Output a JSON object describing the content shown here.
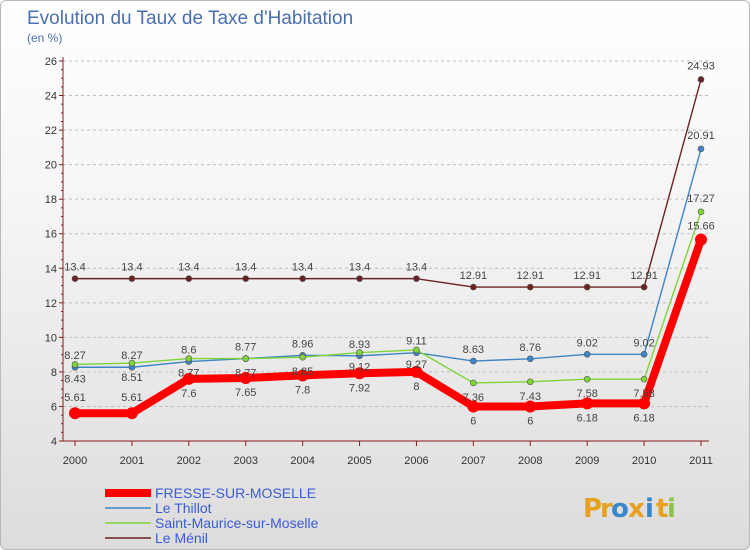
{
  "chart_data": {
    "type": "line",
    "title": "Evolution du Taux de Taxe d'Habitation",
    "subtitle": "(en %)",
    "xlabel": "",
    "ylabel": "",
    "categories": [
      "2000",
      "2001",
      "2002",
      "2003",
      "2004",
      "2005",
      "2006",
      "2007",
      "2008",
      "2009",
      "2010",
      "2011"
    ],
    "ylim": [
      4,
      26
    ],
    "yticks": [
      4,
      6,
      8,
      10,
      12,
      14,
      16,
      18,
      20,
      22,
      24,
      26
    ],
    "grid": "horizontal-dashed",
    "legend_position": "bottom-left",
    "series": [
      {
        "name": "Le Ménil",
        "color": "#6b2222",
        "values": [
          13.4,
          13.4,
          13.4,
          13.4,
          13.4,
          13.4,
          13.4,
          12.91,
          12.91,
          12.91,
          12.91,
          24.93
        ],
        "labels": [
          "13.4",
          "13.4",
          "13.4",
          "13.4",
          "13.4",
          "13.4",
          "13.4",
          "12.91",
          "12.91",
          "12.91",
          "12.91",
          "24.93"
        ]
      },
      {
        "name": "Le Thillot",
        "color": "#3d85c6",
        "values": [
          8.27,
          8.27,
          8.6,
          8.77,
          8.96,
          8.93,
          9.11,
          8.63,
          8.76,
          9.02,
          9.02,
          20.91
        ],
        "labels": [
          "8.27",
          "8.27",
          "8.6",
          "8.77",
          "8.96",
          "8.93",
          "9.11",
          "8.63",
          "8.76",
          "9.02",
          "9.02",
          "20.91"
        ]
      },
      {
        "name": "Saint-Maurice-sur-Moselle",
        "color": "#7fd43a",
        "values": [
          8.43,
          8.51,
          8.77,
          8.77,
          8.85,
          9.12,
          9.27,
          7.36,
          7.43,
          7.58,
          7.58,
          17.27
        ],
        "labels": [
          "8.43",
          "8.51",
          "8.77",
          "8.77",
          "8.85",
          "9.12",
          "9.27",
          "7.36",
          "7.43",
          "7.58",
          "7.58",
          "17.27"
        ]
      },
      {
        "name": "FRESSE-SUR-MOSELLE",
        "color": "#ff0000",
        "values": [
          5.61,
          5.61,
          7.6,
          7.65,
          7.8,
          7.92,
          8,
          6,
          6,
          6.18,
          6.18,
          15.66
        ],
        "labels": [
          "5.61",
          "5.61",
          "7.6",
          "7.65",
          "7.8",
          "7.92",
          "8",
          "6",
          "6",
          "6.18",
          "6.18",
          "15.66"
        ]
      }
    ],
    "legend": [
      "FRESSE-SUR-MOSELLE",
      "Le Thillot",
      "Saint-Maurice-sur-Moselle",
      "Le Ménil"
    ]
  },
  "logo": {
    "text": "Proxiti",
    "letters": [
      "P",
      "r",
      "o",
      "x",
      "i",
      "t",
      "i"
    ],
    "colors": [
      "#e8a020",
      "#e8a020",
      "#3a86c8",
      "#e8a020",
      "#3a86c8",
      "#e8a020",
      "#8bc34a"
    ]
  }
}
